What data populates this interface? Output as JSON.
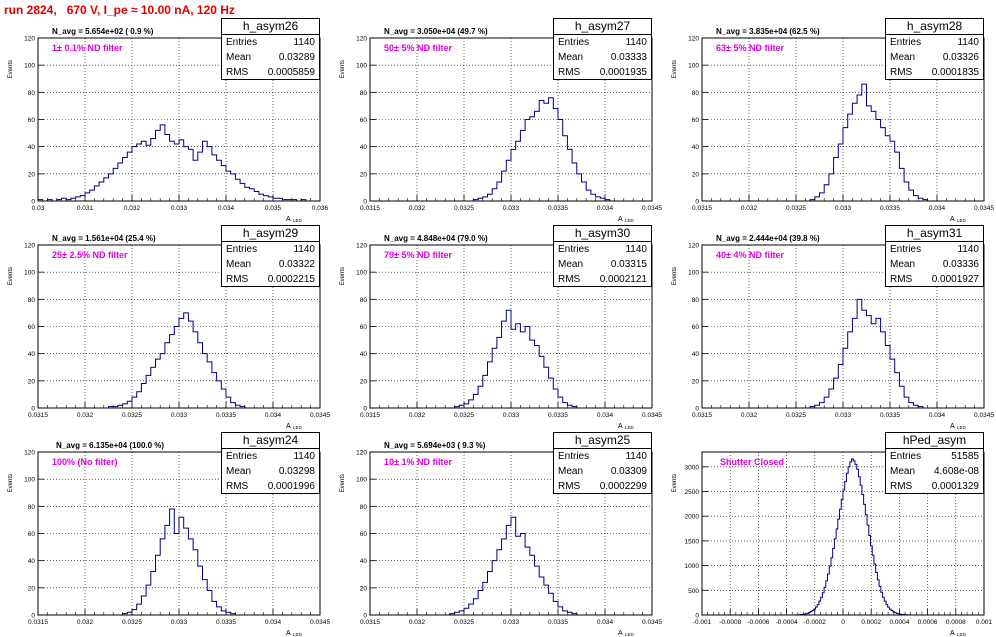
{
  "header": "run 2824,   670 V, I_pe ≈ 10.00 nA, 120 Hz",
  "axis_labels": {
    "y": "Events",
    "x": "A",
    "x_sub": "LED"
  },
  "stat_labels": {
    "entries": "Entries",
    "mean": "Mean",
    "rms": "RMS"
  },
  "pads": [
    {
      "title": "h_asym26",
      "entries": "1140",
      "mean": "0.03289",
      "rms": "0.0005859",
      "navg": "N_avg = 5.654e+02 ( 0.9 %)",
      "filter": "1± 0.1% ND filter",
      "xticks": [
        "0.03",
        "0.031",
        "0.032",
        "0.033",
        "0.034",
        "0.035",
        "0.036"
      ],
      "yticks": [
        "0",
        "20",
        "40",
        "60",
        "80",
        "100",
        "120"
      ]
    },
    {
      "title": "h_asym27",
      "entries": "1140",
      "mean": "0.03333",
      "rms": "0.0001935",
      "navg": "N_avg = 3.050e+04 (49.7 %)",
      "filter": "50± 5% ND filter",
      "xticks": [
        "0.0315",
        "0.032",
        "0.0325",
        "0.033",
        "0.0335",
        "0.034",
        "0.0345"
      ],
      "yticks": [
        "0",
        "20",
        "40",
        "60",
        "80",
        "100",
        "120"
      ]
    },
    {
      "title": "h_asym28",
      "entries": "1140",
      "mean": "0.03326",
      "rms": "0.0001835",
      "navg": "N_avg = 3.835e+04 (62.5 %)",
      "filter": "63± 5% ND filter",
      "xticks": [
        "0.0315",
        "0.032",
        "0.0325",
        "0.033",
        "0.0335",
        "0.034",
        "0.0345"
      ],
      "yticks": [
        "0",
        "20",
        "40",
        "60",
        "80",
        "100",
        "120"
      ]
    },
    {
      "title": "h_asym29",
      "entries": "1140",
      "mean": "0.03322",
      "rms": "0.0002215",
      "navg": "N_avg = 1.561e+04 (25.4 %)",
      "filter": "25± 2.5% ND filter",
      "xticks": [
        "0.0315",
        "0.032",
        "0.0325",
        "0.033",
        "0.0335",
        "0.034",
        "0.0345"
      ],
      "yticks": [
        "0",
        "20",
        "40",
        "60",
        "80",
        "100",
        "120"
      ]
    },
    {
      "title": "h_asym30",
      "entries": "1140",
      "mean": "0.03315",
      "rms": "0.0002121",
      "navg": "N_avg = 4.848e+04 (79.0 %)",
      "filter": "79± 5% ND filter",
      "xticks": [
        "0.0315",
        "0.032",
        "0.0325",
        "0.033",
        "0.0335",
        "0.034",
        "0.0345"
      ],
      "yticks": [
        "0",
        "20",
        "40",
        "60",
        "80",
        "100",
        "120"
      ]
    },
    {
      "title": "h_asym31",
      "entries": "1140",
      "mean": "0.03336",
      "rms": "0.0001927",
      "navg": "N_avg = 2.444e+04 (39.8 %)",
      "filter": "40± 4% ND filter",
      "xticks": [
        "0.0315",
        "0.032",
        "0.0325",
        "0.033",
        "0.0335",
        "0.034",
        "0.0345"
      ],
      "yticks": [
        "0",
        "20",
        "40",
        "60",
        "80",
        "100",
        "120"
      ]
    },
    {
      "title": "h_asym24",
      "entries": "1140",
      "mean": "0.03298",
      "rms": "0.0001996",
      "navg": "N_avg = 6.135e+04 (100.0 %)",
      "filter": "100% (No filter)",
      "xticks": [
        "0.0315",
        "0.032",
        "0.0325",
        "0.033",
        "0.0335",
        "0.034",
        "0.0345"
      ],
      "yticks": [
        "0",
        "20",
        "40",
        "60",
        "80",
        "100",
        "120"
      ]
    },
    {
      "title": "h_asym25",
      "entries": "1140",
      "mean": "0.03309",
      "rms": "0.0002299",
      "navg": "N_avg = 5.694e+03 ( 9.3 %)",
      "filter": "10± 1% ND filter",
      "xticks": [
        "0.0315",
        "0.032",
        "0.0325",
        "0.033",
        "0.0335",
        "0.034",
        "0.0345"
      ],
      "yticks": [
        "0",
        "20",
        "40",
        "60",
        "80",
        "100",
        "120"
      ]
    },
    {
      "title": "hPed_asym",
      "entries": "51585",
      "mean": "4.608e-08",
      "rms": "0.0001329",
      "navg": "",
      "filter": "Shutter Closed",
      "xticks": [
        "-0.001",
        "-0.0008",
        "-0.0006",
        "-0.0004",
        "-0.0002",
        "0",
        "0.0002",
        "0.0004",
        "0.0006",
        "0.0008",
        "0.001"
      ],
      "yticks": [
        "0",
        "500",
        "1000",
        "1500",
        "2000",
        "2500",
        "3000"
      ]
    }
  ],
  "chart_data": [
    {
      "type": "bar",
      "title": "h_asym26",
      "xlim": [
        0.03,
        0.036
      ],
      "ylim": [
        0,
        120
      ],
      "grid": true,
      "legend": "top-right",
      "values": [
        1,
        0,
        1,
        0,
        1,
        2,
        1,
        2,
        3,
        4,
        6,
        8,
        11,
        14,
        17,
        20,
        24,
        28,
        32,
        36,
        40,
        42,
        44,
        41,
        46,
        52,
        56,
        49,
        44,
        42,
        45,
        40,
        38,
        30,
        36,
        44,
        40,
        34,
        30,
        26,
        22,
        20,
        16,
        13,
        10,
        9,
        7,
        5,
        4,
        3,
        2,
        2,
        1,
        1,
        1,
        0,
        1,
        0,
        0,
        0
      ]
    },
    {
      "type": "bar",
      "title": "h_asym27",
      "xlim": [
        0.0315,
        0.0345
      ],
      "ylim": [
        0,
        120
      ],
      "grid": true,
      "legend": "top-right",
      "values": [
        0,
        0,
        0,
        0,
        0,
        0,
        0,
        0,
        0,
        0,
        0,
        0,
        0,
        0,
        0,
        0,
        0,
        0,
        0,
        0,
        0,
        0,
        1,
        2,
        3,
        5,
        9,
        14,
        22,
        30,
        38,
        44,
        52,
        60,
        62,
        66,
        74,
        72,
        76,
        68,
        60,
        48,
        38,
        28,
        20,
        14,
        8,
        5,
        3,
        2,
        1,
        0,
        0,
        0,
        0,
        0,
        0,
        0,
        0,
        0
      ]
    },
    {
      "type": "bar",
      "title": "h_asym28",
      "xlim": [
        0.0315,
        0.0345
      ],
      "ylim": [
        0,
        120
      ],
      "grid": true,
      "legend": "top-right",
      "values": [
        0,
        0,
        0,
        0,
        0,
        0,
        0,
        0,
        0,
        0,
        0,
        0,
        0,
        0,
        0,
        0,
        0,
        0,
        0,
        0,
        0,
        0,
        0,
        1,
        3,
        6,
        12,
        20,
        32,
        42,
        54,
        64,
        72,
        78,
        86,
        70,
        66,
        60,
        54,
        48,
        44,
        36,
        24,
        14,
        8,
        4,
        2,
        1,
        0,
        0,
        0,
        0,
        0,
        0,
        0,
        0,
        0,
        0,
        0,
        0
      ]
    },
    {
      "type": "bar",
      "title": "h_asym29",
      "xlim": [
        0.0315,
        0.0345
      ],
      "ylim": [
        0,
        120
      ],
      "grid": true,
      "legend": "top-right",
      "values": [
        0,
        0,
        0,
        0,
        0,
        0,
        0,
        0,
        0,
        0,
        0,
        0,
        0,
        0,
        0,
        1,
        1,
        2,
        3,
        5,
        8,
        12,
        18,
        24,
        30,
        36,
        40,
        48,
        54,
        60,
        66,
        70,
        64,
        56,
        48,
        40,
        34,
        26,
        20,
        14,
        8,
        4,
        2,
        1,
        0,
        0,
        0,
        0,
        0,
        0,
        0,
        0,
        0,
        0,
        0,
        0,
        0,
        0,
        0,
        0
      ]
    },
    {
      "type": "bar",
      "title": "h_asym30",
      "xlim": [
        0.0315,
        0.0345
      ],
      "ylim": [
        0,
        120
      ],
      "grid": true,
      "legend": "top-right",
      "values": [
        0,
        0,
        0,
        0,
        0,
        0,
        0,
        0,
        0,
        0,
        0,
        0,
        0,
        0,
        0,
        0,
        0,
        0,
        1,
        2,
        3,
        6,
        10,
        16,
        24,
        34,
        44,
        52,
        64,
        72,
        58,
        62,
        56,
        60,
        50,
        46,
        38,
        30,
        22,
        14,
        8,
        4,
        2,
        1,
        0,
        0,
        0,
        0,
        0,
        0,
        0,
        0,
        0,
        0,
        0,
        0,
        0,
        0,
        0,
        0
      ]
    },
    {
      "type": "bar",
      "title": "h_asym31",
      "xlim": [
        0.0315,
        0.0345
      ],
      "ylim": [
        0,
        120
      ],
      "grid": true,
      "legend": "top-right",
      "values": [
        0,
        0,
        0,
        0,
        0,
        0,
        0,
        0,
        0,
        0,
        0,
        0,
        0,
        0,
        0,
        0,
        0,
        0,
        0,
        0,
        0,
        0,
        0,
        1,
        2,
        4,
        8,
        14,
        22,
        32,
        44,
        56,
        66,
        80,
        72,
        68,
        62,
        66,
        56,
        46,
        36,
        26,
        16,
        8,
        4,
        2,
        1,
        0,
        0,
        0,
        0,
        0,
        0,
        0,
        0,
        0,
        0,
        0,
        0,
        0
      ]
    },
    {
      "type": "bar",
      "title": "h_asym24",
      "xlim": [
        0.0315,
        0.0345
      ],
      "ylim": [
        0,
        120
      ],
      "grid": true,
      "legend": "top-right",
      "values": [
        0,
        0,
        0,
        0,
        0,
        0,
        0,
        0,
        0,
        0,
        0,
        0,
        0,
        0,
        0,
        0,
        0,
        0,
        1,
        2,
        4,
        8,
        14,
        22,
        32,
        44,
        56,
        66,
        78,
        60,
        72,
        64,
        56,
        48,
        36,
        26,
        18,
        10,
        6,
        3,
        2,
        1,
        0,
        0,
        0,
        0,
        0,
        0,
        0,
        0,
        0,
        0,
        0,
        0,
        0,
        0,
        0,
        0,
        0,
        0
      ]
    },
    {
      "type": "bar",
      "title": "h_asym25",
      "xlim": [
        0.0315,
        0.0345
      ],
      "ylim": [
        0,
        120
      ],
      "grid": true,
      "legend": "top-right",
      "values": [
        0,
        0,
        0,
        0,
        0,
        0,
        0,
        0,
        0,
        0,
        0,
        0,
        0,
        0,
        0,
        0,
        0,
        1,
        2,
        3,
        5,
        8,
        12,
        18,
        24,
        32,
        40,
        48,
        56,
        66,
        72,
        58,
        60,
        50,
        44,
        36,
        28,
        22,
        16,
        10,
        6,
        3,
        2,
        1,
        0,
        0,
        0,
        0,
        0,
        0,
        0,
        0,
        0,
        0,
        0,
        0,
        0,
        0,
        0,
        0
      ]
    },
    {
      "type": "bar",
      "title": "hPed_asym",
      "xlim": [
        -0.001,
        0.001
      ],
      "ylim": [
        0,
        3300
      ],
      "grid": true,
      "legend": "top-right",
      "values": [
        0,
        0,
        0,
        0,
        0,
        0,
        0,
        0,
        0,
        0,
        0,
        0,
        0,
        0,
        0,
        0,
        0,
        0,
        0,
        0,
        0,
        0,
        0,
        0,
        0,
        0,
        0,
        0,
        0,
        0,
        0,
        0,
        0,
        0,
        0,
        0,
        0,
        0,
        0,
        0,
        0,
        0,
        0,
        0,
        0,
        0,
        0,
        0,
        0,
        0,
        0,
        0,
        1,
        1,
        2,
        3,
        5,
        8,
        12,
        18,
        26,
        36,
        50,
        68,
        90,
        120,
        160,
        210,
        280,
        360,
        450,
        560,
        690,
        830,
        990,
        1160,
        1350,
        1540,
        1740,
        1940,
        2140,
        2340,
        2530,
        2700,
        2870,
        3000,
        3100,
        3160,
        3120,
        3050,
        2950,
        2800,
        2630,
        2440,
        2240,
        2030,
        1820,
        1610,
        1400,
        1210,
        1030,
        860,
        710,
        580,
        460,
        360,
        280,
        210,
        160,
        120,
        90,
        66,
        48,
        34,
        24,
        16,
        11,
        7,
        5,
        3,
        2,
        1,
        1,
        0,
        0,
        0,
        0,
        0,
        0,
        0,
        0,
        0,
        0,
        0,
        0,
        0,
        0,
        0,
        0,
        0,
        0,
        0,
        0,
        0,
        0,
        0,
        0,
        0,
        0,
        0,
        0,
        0,
        0,
        0,
        0,
        0,
        0,
        0,
        0,
        0,
        0,
        0,
        0,
        0
      ]
    }
  ]
}
